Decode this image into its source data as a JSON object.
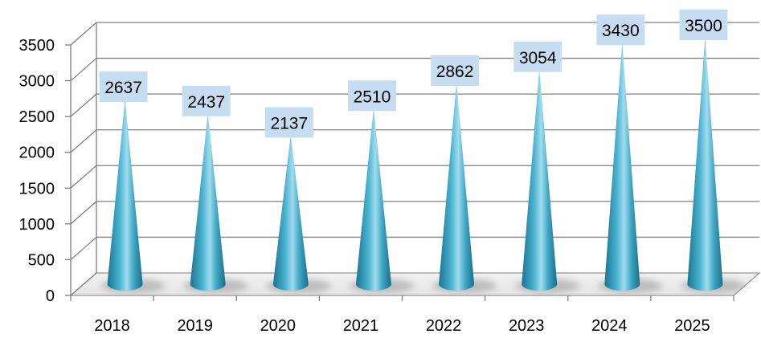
{
  "chart_data": {
    "type": "bar",
    "bar_shape": "3d-cone",
    "title": "",
    "xlabel": "",
    "ylabel": "",
    "categories": [
      "2018",
      "2019",
      "2020",
      "2021",
      "2022",
      "2023",
      "2024",
      "2025"
    ],
    "values": [
      2637,
      2437,
      2137,
      2510,
      2862,
      3054,
      3430,
      3500
    ],
    "data_labels": [
      "2637",
      "2437",
      "2137",
      "2510",
      "2862",
      "3054",
      "3430",
      "3500"
    ],
    "yticks": [
      "0",
      "500",
      "1000",
      "1500",
      "2000",
      "2500",
      "3000",
      "3500"
    ],
    "ylim": [
      0,
      3500
    ],
    "grid": true,
    "legend": "none",
    "colors": {
      "cone_dark": "#1f7f99",
      "cone_mid": "#4bb3cf",
      "cone_light": "#a8e2f2",
      "label_box": "#c6dcf0",
      "grid": "#7f7f7f"
    }
  }
}
